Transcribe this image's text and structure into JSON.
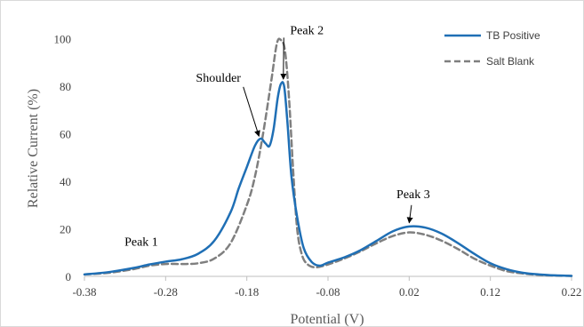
{
  "chart_data": {
    "type": "line",
    "xlabel": "Potential (V)",
    "ylabel": "Relative Current (%)",
    "xlim": [
      -0.38,
      0.22
    ],
    "ylim": [
      0,
      110
    ],
    "x_ticks": [
      "-0.38",
      "-0.28",
      "-0.18",
      "-0.08",
      "0.02",
      "0.12",
      "0.22"
    ],
    "y_ticks": [
      "0",
      "20",
      "40",
      "60",
      "80",
      "100"
    ],
    "grid": false,
    "legend_position": "top-right",
    "series": [
      {
        "name": "TB Positive",
        "color": "#1f6fb5",
        "style": "solid",
        "points": [
          [
            -0.38,
            0.8
          ],
          [
            -0.35,
            1.8
          ],
          [
            -0.32,
            3.5
          ],
          [
            -0.3,
            5.0
          ],
          [
            -0.28,
            6.2
          ],
          [
            -0.26,
            7.2
          ],
          [
            -0.24,
            9.5
          ],
          [
            -0.22,
            15.0
          ],
          [
            -0.2,
            27.0
          ],
          [
            -0.19,
            37.0
          ],
          [
            -0.18,
            46.0
          ],
          [
            -0.17,
            55.0
          ],
          [
            -0.163,
            58.0
          ],
          [
            -0.157,
            56.0
          ],
          [
            -0.152,
            55.0
          ],
          [
            -0.147,
            62.0
          ],
          [
            -0.142,
            75.0
          ],
          [
            -0.138,
            81.0
          ],
          [
            -0.134,
            80.0
          ],
          [
            -0.13,
            65.0
          ],
          [
            -0.125,
            42.0
          ],
          [
            -0.118,
            25.0
          ],
          [
            -0.11,
            12.0
          ],
          [
            -0.1,
            6.0
          ],
          [
            -0.09,
            4.5
          ],
          [
            -0.08,
            5.8
          ],
          [
            -0.06,
            8.0
          ],
          [
            -0.04,
            11.0
          ],
          [
            -0.02,
            15.0
          ],
          [
            0.0,
            19.0
          ],
          [
            0.02,
            21.0
          ],
          [
            0.04,
            20.5
          ],
          [
            0.06,
            18.0
          ],
          [
            0.08,
            14.0
          ],
          [
            0.1,
            9.5
          ],
          [
            0.12,
            5.5
          ],
          [
            0.14,
            3.0
          ],
          [
            0.16,
            1.5
          ],
          [
            0.18,
            0.8
          ],
          [
            0.2,
            0.4
          ],
          [
            0.22,
            0.2
          ]
        ]
      },
      {
        "name": "Salt Blank",
        "color": "#7f7f7f",
        "style": "dashed",
        "points": [
          [
            -0.38,
            0.8
          ],
          [
            -0.35,
            1.5
          ],
          [
            -0.32,
            3.0
          ],
          [
            -0.3,
            4.5
          ],
          [
            -0.28,
            5.2
          ],
          [
            -0.26,
            5.2
          ],
          [
            -0.24,
            5.5
          ],
          [
            -0.22,
            7.5
          ],
          [
            -0.2,
            14.0
          ],
          [
            -0.18,
            30.0
          ],
          [
            -0.17,
            42.0
          ],
          [
            -0.16,
            60.0
          ],
          [
            -0.15,
            82.0
          ],
          [
            -0.143,
            98.0
          ],
          [
            -0.138,
            99.5
          ],
          [
            -0.133,
            95.0
          ],
          [
            -0.128,
            75.0
          ],
          [
            -0.123,
            45.0
          ],
          [
            -0.118,
            20.0
          ],
          [
            -0.112,
            9.0
          ],
          [
            -0.105,
            5.0
          ],
          [
            -0.095,
            3.8
          ],
          [
            -0.08,
            5.0
          ],
          [
            -0.06,
            7.5
          ],
          [
            -0.04,
            10.5
          ],
          [
            -0.02,
            14.0
          ],
          [
            0.0,
            17.0
          ],
          [
            0.02,
            18.5
          ],
          [
            0.04,
            17.5
          ],
          [
            0.06,
            15.0
          ],
          [
            0.08,
            11.5
          ],
          [
            0.1,
            7.5
          ],
          [
            0.12,
            4.5
          ],
          [
            0.14,
            2.2
          ],
          [
            0.16,
            1.2
          ],
          [
            0.18,
            0.6
          ],
          [
            0.2,
            0.3
          ],
          [
            0.22,
            0.2
          ]
        ]
      }
    ],
    "annotations": [
      {
        "label": "Peak 1",
        "x": -0.31,
        "y": 13,
        "arrow": false
      },
      {
        "label": "Shoulder",
        "x": -0.215,
        "y": 82,
        "arrow": true,
        "target_x": -0.165,
        "target_y": 59
      },
      {
        "label": "Peak 2",
        "x": -0.106,
        "y": 102,
        "arrow": true,
        "target_x": -0.135,
        "target_y": 83
      },
      {
        "label": "Peak 3",
        "x": 0.025,
        "y": 33,
        "arrow": true,
        "target_x": 0.02,
        "target_y": 22.5
      }
    ]
  }
}
